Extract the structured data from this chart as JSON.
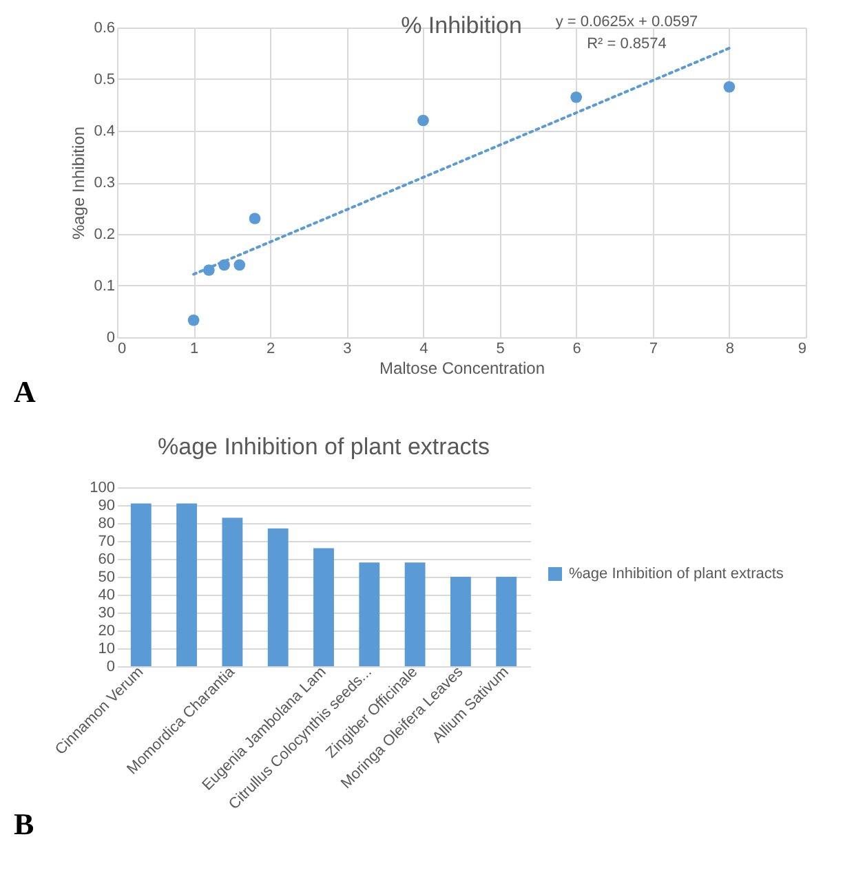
{
  "chart_data": [
    {
      "type": "scatter",
      "title": "% Inhibition",
      "xlabel": "Maltose Concentration",
      "ylabel": "%age Inhibition",
      "x": [
        1,
        1.2,
        1.4,
        1.6,
        1.8,
        4,
        6,
        8
      ],
      "series": [
        {
          "color": "#5b9bd5",
          "values": [
            0.033,
            0.13,
            0.14,
            0.14,
            0.23,
            0.42,
            0.465,
            0.485
          ],
          "marker": "circle"
        },
        {
          "type": "line",
          "color": "#5b9bd5",
          "x": [
            1,
            8
          ],
          "values": [
            0.122,
            0.56
          ],
          "line_style": "dotted"
        }
      ],
      "xlim": [
        0,
        9
      ],
      "xticks": [
        0,
        1,
        2,
        3,
        4,
        5,
        6,
        7,
        8,
        9
      ],
      "ylim": [
        0,
        0.6
      ],
      "yticks": [
        0,
        0.1,
        0.2,
        0.3,
        0.4,
        0.5,
        0.6
      ],
      "grid": true,
      "annotations": [
        "y = 0.0625x + 0.0597",
        "R² = 0.8574",
        "A"
      ]
    },
    {
      "type": "bar",
      "title": "%age Inhibition of plant extracts",
      "categories": [
        "Cinnamon Verum",
        null,
        "Momordica Charantia",
        null,
        "Eugenia Jambolana Lam",
        "Citrullus Colocynthis seeds...",
        "Zingiber Officinale",
        "Moringa Oleifera Leaves",
        "Allium Sativum"
      ],
      "series": [
        {
          "name": "%age Inhibition of plant extracts",
          "color": "#5b9bd5",
          "values": [
            91,
            91,
            83,
            77,
            66,
            58,
            58,
            50,
            50
          ]
        }
      ],
      "ylim": [
        0,
        100
      ],
      "yticks": [
        0,
        10,
        20,
        30,
        40,
        50,
        60,
        70,
        80,
        90,
        100
      ],
      "grid": "y",
      "legend": "right",
      "annotations": [
        "B"
      ]
    }
  ]
}
